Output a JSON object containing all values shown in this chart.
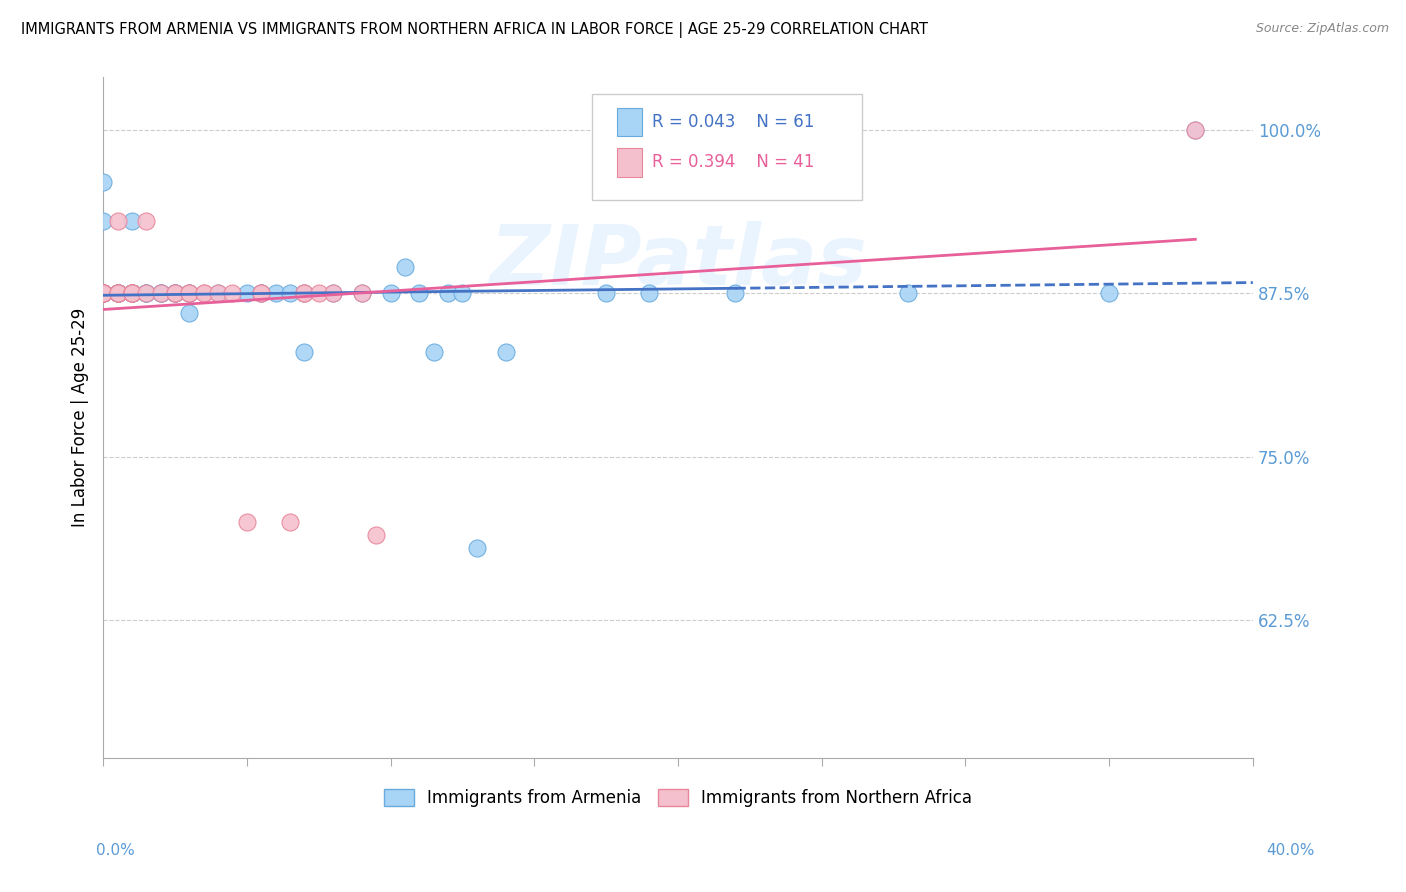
{
  "title": "IMMIGRANTS FROM ARMENIA VS IMMIGRANTS FROM NORTHERN AFRICA IN LABOR FORCE | AGE 25-29 CORRELATION CHART",
  "source": "Source: ZipAtlas.com",
  "ylabel": "In Labor Force | Age 25-29",
  "ytick_labels": [
    "100.0%",
    "87.5%",
    "75.0%",
    "62.5%"
  ],
  "ytick_values": [
    1.0,
    0.875,
    0.75,
    0.625
  ],
  "xlim": [
    0.0,
    0.4
  ],
  "ylim": [
    0.52,
    1.04
  ],
  "watermark": "ZIPatlas",
  "armenia_color": "#A8D4F5",
  "armenia_edge": "#6AABDE",
  "northern_africa_color": "#F5C0CE",
  "northern_africa_edge": "#E8869A",
  "trend_armenia_color": "#4472C4",
  "trend_na_color": "#E8609A",
  "grid_color": "#CCCCCC",
  "tick_color": "#5B9BD5",
  "armenia_x": [
    0.0,
    0.0,
    0.0,
    0.0,
    0.0,
    0.0,
    0.0,
    0.0,
    0.0,
    0.0,
    0.005,
    0.005,
    0.005,
    0.005,
    0.005,
    0.005,
    0.005,
    0.01,
    0.01,
    0.01,
    0.01,
    0.01,
    0.01,
    0.01,
    0.015,
    0.015,
    0.015,
    0.02,
    0.02,
    0.02,
    0.025,
    0.025,
    0.025,
    0.03,
    0.03,
    0.03,
    0.04,
    0.05,
    0.055,
    0.055,
    0.06,
    0.065,
    0.07,
    0.07,
    0.08,
    0.09,
    0.1,
    0.105,
    0.11,
    0.115,
    0.12,
    0.125,
    0.13,
    0.14,
    0.175,
    0.19,
    0.22,
    0.28,
    0.35,
    0.38
  ],
  "armenia_y": [
    0.875,
    0.875,
    0.875,
    0.875,
    0.875,
    0.875,
    0.875,
    0.875,
    0.93,
    0.96,
    0.875,
    0.875,
    0.875,
    0.875,
    0.875,
    0.875,
    0.875,
    0.875,
    0.875,
    0.875,
    0.875,
    0.875,
    0.875,
    0.93,
    0.875,
    0.875,
    0.875,
    0.875,
    0.875,
    0.875,
    0.875,
    0.875,
    0.875,
    0.875,
    0.875,
    0.86,
    0.875,
    0.875,
    0.875,
    0.875,
    0.875,
    0.875,
    0.875,
    0.83,
    0.875,
    0.875,
    0.875,
    0.895,
    0.875,
    0.83,
    0.875,
    0.875,
    0.68,
    0.83,
    0.875,
    0.875,
    0.875,
    0.875,
    0.875,
    1.0
  ],
  "na_x": [
    0.0,
    0.0,
    0.0,
    0.0,
    0.0,
    0.0,
    0.0,
    0.0,
    0.0,
    0.005,
    0.005,
    0.005,
    0.005,
    0.005,
    0.01,
    0.01,
    0.01,
    0.01,
    0.01,
    0.015,
    0.015,
    0.02,
    0.025,
    0.025,
    0.03,
    0.03,
    0.035,
    0.035,
    0.04,
    0.045,
    0.05,
    0.055,
    0.055,
    0.065,
    0.07,
    0.07,
    0.075,
    0.08,
    0.09,
    0.095,
    0.38
  ],
  "na_y": [
    0.875,
    0.875,
    0.875,
    0.875,
    0.875,
    0.875,
    0.875,
    0.875,
    0.875,
    0.875,
    0.875,
    0.875,
    0.875,
    0.93,
    0.875,
    0.875,
    0.875,
    0.875,
    0.875,
    0.93,
    0.875,
    0.875,
    0.875,
    0.875,
    0.875,
    0.875,
    0.875,
    0.875,
    0.875,
    0.875,
    0.7,
    0.875,
    0.875,
    0.7,
    0.875,
    0.875,
    0.875,
    0.875,
    0.875,
    0.69,
    1.0
  ]
}
